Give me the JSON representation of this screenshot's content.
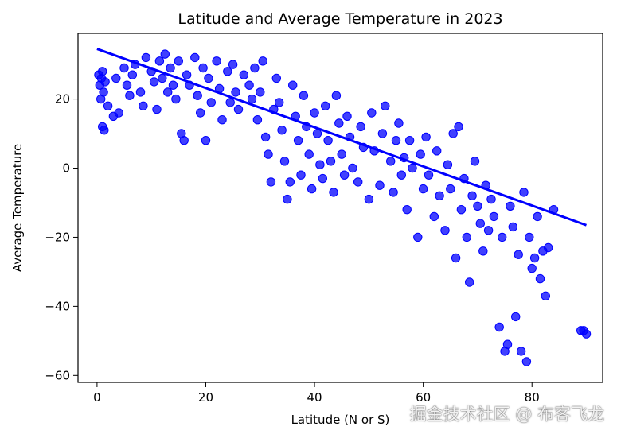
{
  "chart_data": {
    "type": "scatter",
    "title": "Latitude and Average Temperature in 2023",
    "xlabel": "Latitude (N or S)",
    "ylabel": "Average Temperature",
    "xlim": [
      -3.5,
      93
    ],
    "ylim": [
      -62,
      39
    ],
    "xticks": [
      0,
      20,
      40,
      60,
      80
    ],
    "yticks": [
      -60,
      -40,
      -20,
      0,
      20
    ],
    "grid": false,
    "colors": {
      "points": "#0000ff",
      "line": "#0000ff",
      "axes": "#000000"
    },
    "regression_line": {
      "x": [
        0,
        90
      ],
      "y": [
        34.5,
        -16.5
      ]
    },
    "series": [
      {
        "points": [
          [
            0.3,
            27
          ],
          [
            0.5,
            24
          ],
          [
            0.8,
            26
          ],
          [
            1,
            28
          ],
          [
            1.2,
            22
          ],
          [
            1.5,
            25
          ],
          [
            1,
            12
          ],
          [
            1.3,
            11
          ],
          [
            2,
            18
          ],
          [
            0.7,
            20
          ],
          [
            3,
            15
          ],
          [
            4,
            16
          ],
          [
            3.5,
            26
          ],
          [
            5,
            29
          ],
          [
            5.5,
            24
          ],
          [
            6,
            21
          ],
          [
            6.5,
            27
          ],
          [
            7,
            30
          ],
          [
            8,
            22
          ],
          [
            8.5,
            18
          ],
          [
            9,
            32
          ],
          [
            10,
            28
          ],
          [
            10.5,
            25
          ],
          [
            11,
            17
          ],
          [
            11.5,
            31
          ],
          [
            12,
            26
          ],
          [
            12.5,
            33
          ],
          [
            13,
            22
          ],
          [
            13.5,
            29
          ],
          [
            14,
            24
          ],
          [
            14.5,
            20
          ],
          [
            15,
            31
          ],
          [
            15.5,
            10
          ],
          [
            16,
            8
          ],
          [
            16.5,
            27
          ],
          [
            17,
            24
          ],
          [
            18,
            32
          ],
          [
            18.5,
            21
          ],
          [
            19,
            16
          ],
          [
            19.5,
            29
          ],
          [
            20,
            8
          ],
          [
            20.5,
            26
          ],
          [
            21,
            19
          ],
          [
            22,
            31
          ],
          [
            22.5,
            23
          ],
          [
            23,
            14
          ],
          [
            24,
            28
          ],
          [
            24.5,
            19
          ],
          [
            25,
            30
          ],
          [
            25.5,
            22
          ],
          [
            26,
            17
          ],
          [
            27,
            27
          ],
          [
            28,
            24
          ],
          [
            28.5,
            20
          ],
          [
            29,
            29
          ],
          [
            29.5,
            14
          ],
          [
            30,
            22
          ],
          [
            30.5,
            31
          ],
          [
            31,
            9
          ],
          [
            31.5,
            4
          ],
          [
            32,
            -4
          ],
          [
            32.5,
            17
          ],
          [
            33,
            26
          ],
          [
            33.5,
            19
          ],
          [
            34,
            11
          ],
          [
            34.5,
            2
          ],
          [
            35,
            -9
          ],
          [
            35.5,
            -4
          ],
          [
            36,
            24
          ],
          [
            36.5,
            15
          ],
          [
            37,
            8
          ],
          [
            37.5,
            -2
          ],
          [
            38,
            21
          ],
          [
            38.5,
            12
          ],
          [
            39,
            4
          ],
          [
            39.5,
            -6
          ],
          [
            40,
            16
          ],
          [
            40.5,
            10
          ],
          [
            41,
            1
          ],
          [
            41.5,
            -3
          ],
          [
            42,
            18
          ],
          [
            42.5,
            8
          ],
          [
            43,
            2
          ],
          [
            43.5,
            -7
          ],
          [
            44,
            21
          ],
          [
            44.5,
            13
          ],
          [
            45,
            4
          ],
          [
            45.5,
            -2
          ],
          [
            46,
            15
          ],
          [
            46.5,
            9
          ],
          [
            47,
            0
          ],
          [
            48,
            -4
          ],
          [
            48.5,
            12
          ],
          [
            49,
            6
          ],
          [
            50,
            -9
          ],
          [
            50.5,
            16
          ],
          [
            51,
            5
          ],
          [
            52,
            -5
          ],
          [
            52.5,
            10
          ],
          [
            53,
            18
          ],
          [
            54,
            2
          ],
          [
            54.5,
            -7
          ],
          [
            55,
            8
          ],
          [
            55.5,
            13
          ],
          [
            56,
            -2
          ],
          [
            56.5,
            3
          ],
          [
            57,
            -12
          ],
          [
            57.5,
            8
          ],
          [
            58,
            0
          ],
          [
            59,
            -20
          ],
          [
            59.5,
            4
          ],
          [
            60,
            -6
          ],
          [
            60.5,
            9
          ],
          [
            61,
            -2
          ],
          [
            62,
            -14
          ],
          [
            62.5,
            5
          ],
          [
            63,
            -8
          ],
          [
            64,
            -18
          ],
          [
            64.5,
            1
          ],
          [
            65,
            -6
          ],
          [
            65.5,
            10
          ],
          [
            66,
            -26
          ],
          [
            66.5,
            12
          ],
          [
            67,
            -12
          ],
          [
            67.5,
            -3
          ],
          [
            68,
            -20
          ],
          [
            68.5,
            -33
          ],
          [
            69,
            -8
          ],
          [
            69.5,
            2
          ],
          [
            70,
            -11
          ],
          [
            70.5,
            -16
          ],
          [
            71,
            -24
          ],
          [
            71.5,
            -5
          ],
          [
            72,
            -18
          ],
          [
            72.5,
            -9
          ],
          [
            73,
            -14
          ],
          [
            74,
            -46
          ],
          [
            74.5,
            -20
          ],
          [
            75,
            -53
          ],
          [
            75.5,
            -51
          ],
          [
            76,
            -11
          ],
          [
            76.5,
            -17
          ],
          [
            77,
            -43
          ],
          [
            77.5,
            -25
          ],
          [
            78,
            -53
          ],
          [
            78.5,
            -7
          ],
          [
            79,
            -56
          ],
          [
            79.5,
            -20
          ],
          [
            80,
            -29
          ],
          [
            80.5,
            -26
          ],
          [
            81,
            -14
          ],
          [
            81.5,
            -32
          ],
          [
            82,
            -24
          ],
          [
            82.5,
            -37
          ],
          [
            83,
            -23
          ],
          [
            84,
            -12
          ],
          [
            89,
            -47
          ],
          [
            89.5,
            -47
          ],
          [
            90,
            -48
          ]
        ]
      }
    ]
  },
  "watermark": "掘金技术社区 @ 布客飞龙"
}
